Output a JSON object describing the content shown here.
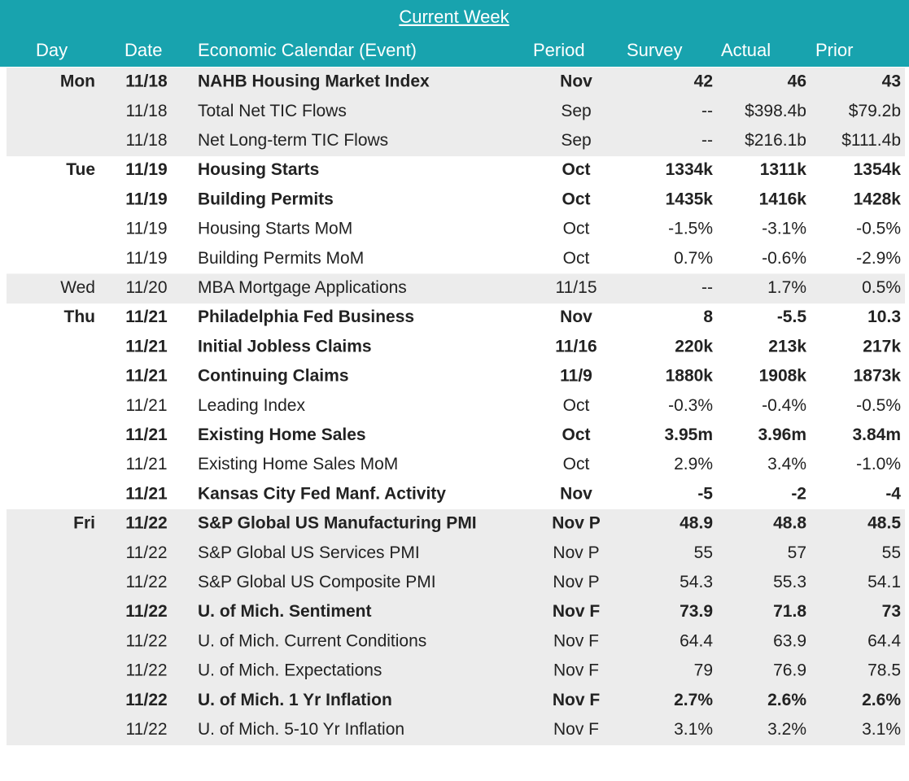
{
  "header": {
    "title": "Current Week"
  },
  "table": {
    "columns": [
      "Day",
      "Date",
      "Economic Calendar (Event)",
      "Period",
      "Survey",
      "Actual",
      "Prior"
    ],
    "rows": [
      {
        "bold": true,
        "cells": [
          "Mon",
          "11/18",
          "NAHB Housing Market Index",
          "Nov",
          "42",
          "46",
          "43"
        ]
      },
      {
        "bold": false,
        "cells": [
          null,
          "11/18",
          "Total Net TIC Flows",
          "Sep",
          "--",
          "$398.4b",
          "$79.2b"
        ]
      },
      {
        "bold": false,
        "cells": [
          null,
          "11/18",
          "Net Long-term TIC Flows",
          "Sep",
          "--",
          "$216.1b",
          "$111.4b"
        ]
      },
      {
        "bold": true,
        "cells": [
          "Tue",
          "11/19",
          "Housing Starts",
          "Oct",
          "1334k",
          "1311k",
          "1354k"
        ]
      },
      {
        "bold": true,
        "cells": [
          null,
          "11/19",
          "Building Permits",
          "Oct",
          "1435k",
          "1416k",
          "1428k"
        ]
      },
      {
        "bold": false,
        "cells": [
          null,
          "11/19",
          "Housing Starts MoM",
          "Oct",
          "-1.5%",
          "-3.1%",
          "-0.5%"
        ]
      },
      {
        "bold": false,
        "cells": [
          null,
          "11/19",
          "Building Permits MoM",
          "Oct",
          "0.7%",
          "-0.6%",
          "-2.9%"
        ]
      },
      {
        "bold": false,
        "cells": [
          "Wed",
          "11/20",
          "MBA Mortgage Applications",
          "11/15",
          "--",
          "1.7%",
          "0.5%"
        ]
      },
      {
        "bold": true,
        "cells": [
          "Thu",
          "11/21",
          "Philadelphia Fed Business",
          "Nov",
          "8",
          "-5.5",
          "10.3"
        ]
      },
      {
        "bold": true,
        "cells": [
          null,
          "11/21",
          "Initial Jobless Claims",
          "11/16",
          "220k",
          "213k",
          "217k"
        ]
      },
      {
        "bold": true,
        "cells": [
          null,
          "11/21",
          "Continuing Claims",
          "11/9",
          "1880k",
          "1908k",
          "1873k"
        ]
      },
      {
        "bold": false,
        "cells": [
          null,
          "11/21",
          "Leading Index",
          "Oct",
          "-0.3%",
          "-0.4%",
          "-0.5%"
        ]
      },
      {
        "bold": true,
        "cells": [
          null,
          "11/21",
          "Existing Home Sales",
          "Oct",
          "3.95m",
          "3.96m",
          "3.84m"
        ]
      },
      {
        "bold": false,
        "cells": [
          null,
          "11/21",
          "Existing Home Sales MoM",
          "Oct",
          "2.9%",
          "3.4%",
          "-1.0%"
        ]
      },
      {
        "bold": true,
        "cells": [
          null,
          "11/21",
          "Kansas City Fed Manf. Activity",
          "Nov",
          "-5",
          "-2",
          "-4"
        ]
      },
      {
        "bold": true,
        "cells": [
          "Fri",
          "11/22",
          "S&P Global US Manufacturing PMI",
          "Nov P",
          "48.9",
          "48.8",
          "48.5"
        ]
      },
      {
        "bold": false,
        "cells": [
          null,
          "11/22",
          "S&P Global US Services PMI",
          "Nov P",
          "55",
          "57",
          "55"
        ]
      },
      {
        "bold": false,
        "cells": [
          null,
          "11/22",
          "S&P Global US Composite PMI",
          "Nov P",
          "54.3",
          "55.3",
          "54.1"
        ]
      },
      {
        "bold": true,
        "cells": [
          null,
          "11/22",
          "U. of Mich. Sentiment",
          "Nov F",
          "73.9",
          "71.8",
          "73"
        ]
      },
      {
        "bold": false,
        "cells": [
          null,
          "11/22",
          "U. of Mich. Current Conditions",
          "Nov F",
          "64.4",
          "63.9",
          "64.4"
        ]
      },
      {
        "bold": false,
        "cells": [
          null,
          "11/22",
          "U. of Mich. Expectations",
          "Nov F",
          "79",
          "76.9",
          "78.5"
        ]
      },
      {
        "bold": true,
        "cells": [
          null,
          "11/22",
          "U. of Mich. 1 Yr Inflation",
          "Nov F",
          "2.7%",
          "2.6%",
          "2.6%"
        ]
      },
      {
        "bold": false,
        "cells": [
          null,
          "11/22",
          "U. of Mich. 5-10 Yr Inflation",
          "Nov F",
          "3.1%",
          "3.2%",
          "3.1%"
        ]
      }
    ]
  }
}
